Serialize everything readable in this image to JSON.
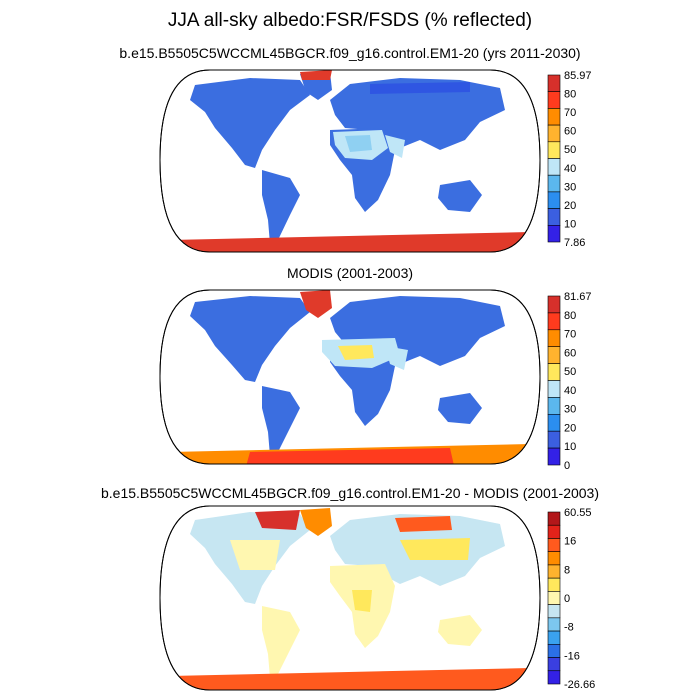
{
  "title": "JJA all-sky albedo:FSR/FSDS (% reflected)",
  "panels": [
    {
      "id": "model",
      "title": "b.e15.B5505C5WCCML45BGCR.f09_g16.control.EM1-20 (yrs 2011-2030)",
      "colorbar": {
        "labels": [
          "85.97",
          "80",
          "70",
          "60",
          "50",
          "40",
          "30",
          "20",
          "10",
          "7.86"
        ],
        "colors": [
          "#d7302b",
          "#ff3b1e",
          "#ff8c00",
          "#ffb32e",
          "#ffe85c",
          "#bfe6f7",
          "#5bb7ee",
          "#2b8ef0",
          "#3b5fe0",
          "#3321e6"
        ]
      }
    },
    {
      "id": "obs",
      "title": "MODIS (2001-2003)",
      "colorbar": {
        "labels": [
          "81.67",
          "80",
          "70",
          "60",
          "50",
          "40",
          "30",
          "20",
          "10",
          "0"
        ],
        "colors": [
          "#d7302b",
          "#ff3b1e",
          "#ff8c00",
          "#ffb32e",
          "#ffe85c",
          "#bfe6f7",
          "#5bb7ee",
          "#2b8ef0",
          "#3b5fe0",
          "#3321e6"
        ]
      }
    },
    {
      "id": "diff",
      "title": "b.e15.B5505C5WCCML45BGCR.f09_g16.control.EM1-20 - MODIS (2001-2003)",
      "colorbar": {
        "labels": [
          "60.55",
          "",
          "16",
          "",
          "8",
          "",
          "0",
          "",
          "-8",
          "",
          "-16",
          "",
          "-26.66"
        ],
        "colors": [
          "#b2171a",
          "#e2231a",
          "#ff5a1e",
          "#ff8c00",
          "#ffb32e",
          "#ffe85c",
          "#fff7b0",
          "#c6e6f2",
          "#7cc7ef",
          "#3aa2ef",
          "#2b70e6",
          "#3a3fe0",
          "#3321e6"
        ]
      }
    }
  ]
}
